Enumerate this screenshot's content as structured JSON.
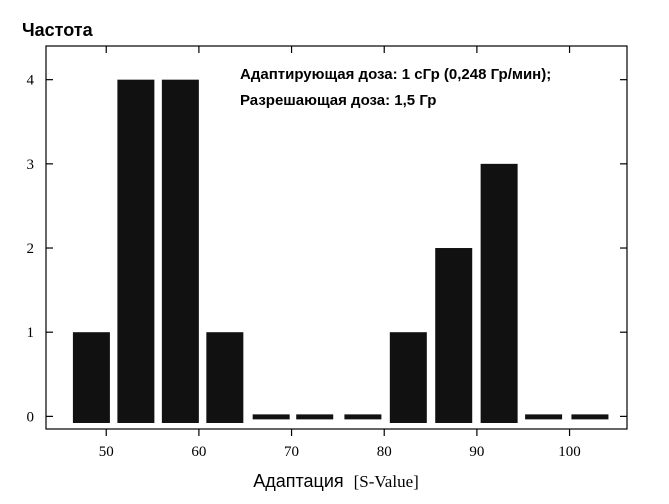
{
  "chart_data": {
    "type": "bar",
    "title": "",
    "ylabel": "Частота",
    "xlabel": "Адаптация",
    "xlabel_unit": "[S-Value]",
    "annotations": [
      "Адаптирующая доза: 1 сГр (0,248 Гр/мин);",
      "Разрешающая доза: 1,5 Гр"
    ],
    "bin_width": 7.5,
    "x": [
      50,
      55,
      60,
      65,
      70,
      75,
      80,
      85,
      90,
      95,
      100,
      105
    ],
    "categories": [
      "48.4",
      "53.2",
      "58.0",
      "62.8",
      "67.8",
      "72.5",
      "77.7",
      "82.6",
      "87.5",
      "92.4",
      "97.2",
      "102.2"
    ],
    "values": [
      1,
      4,
      4,
      1,
      0,
      0,
      0,
      1,
      2,
      3,
      0,
      0
    ],
    "bin_centers": [
      48.4,
      53.2,
      58.0,
      62.8,
      67.8,
      72.5,
      77.7,
      82.6,
      87.5,
      92.4,
      97.2,
      102.2
    ],
    "xlim": [
      43.5,
      106.2
    ],
    "ylim": [
      -0.15,
      4.4
    ],
    "x_ticks": [
      50,
      60,
      70,
      80,
      90,
      100
    ],
    "y_ticks": [
      0,
      1,
      2,
      3,
      4
    ],
    "grid": false,
    "legend": "none"
  }
}
